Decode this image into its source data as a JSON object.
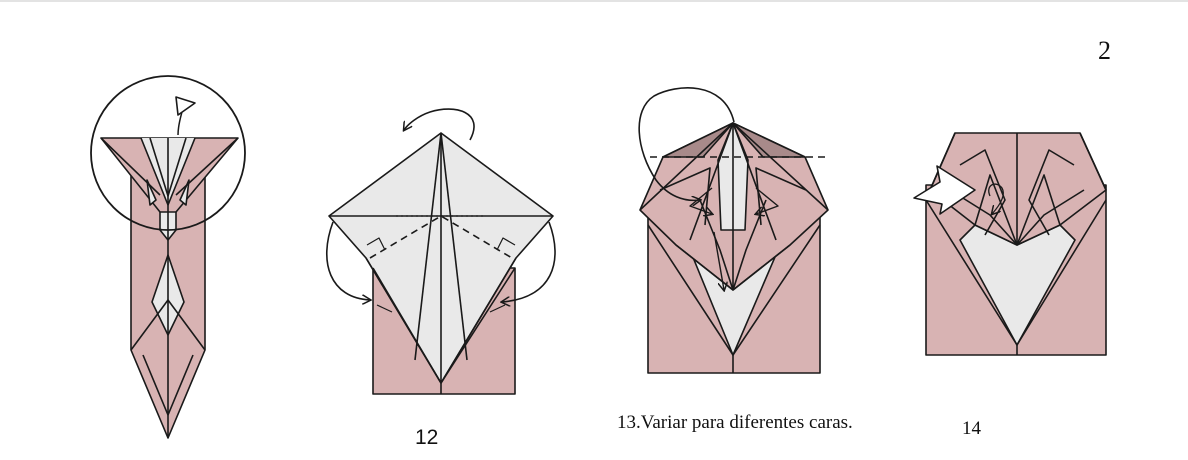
{
  "page_number": "2",
  "steps": [
    {
      "label": ""
    },
    {
      "label": "12"
    },
    {
      "label": "13.Variar para diferentes caras."
    },
    {
      "label": "14"
    }
  ],
  "colors": {
    "paper_pink": "#d8b3b3",
    "paper_white": "#e9e9e9",
    "fold_dark": "#a88a8a",
    "ink": "#1a1a1a"
  }
}
